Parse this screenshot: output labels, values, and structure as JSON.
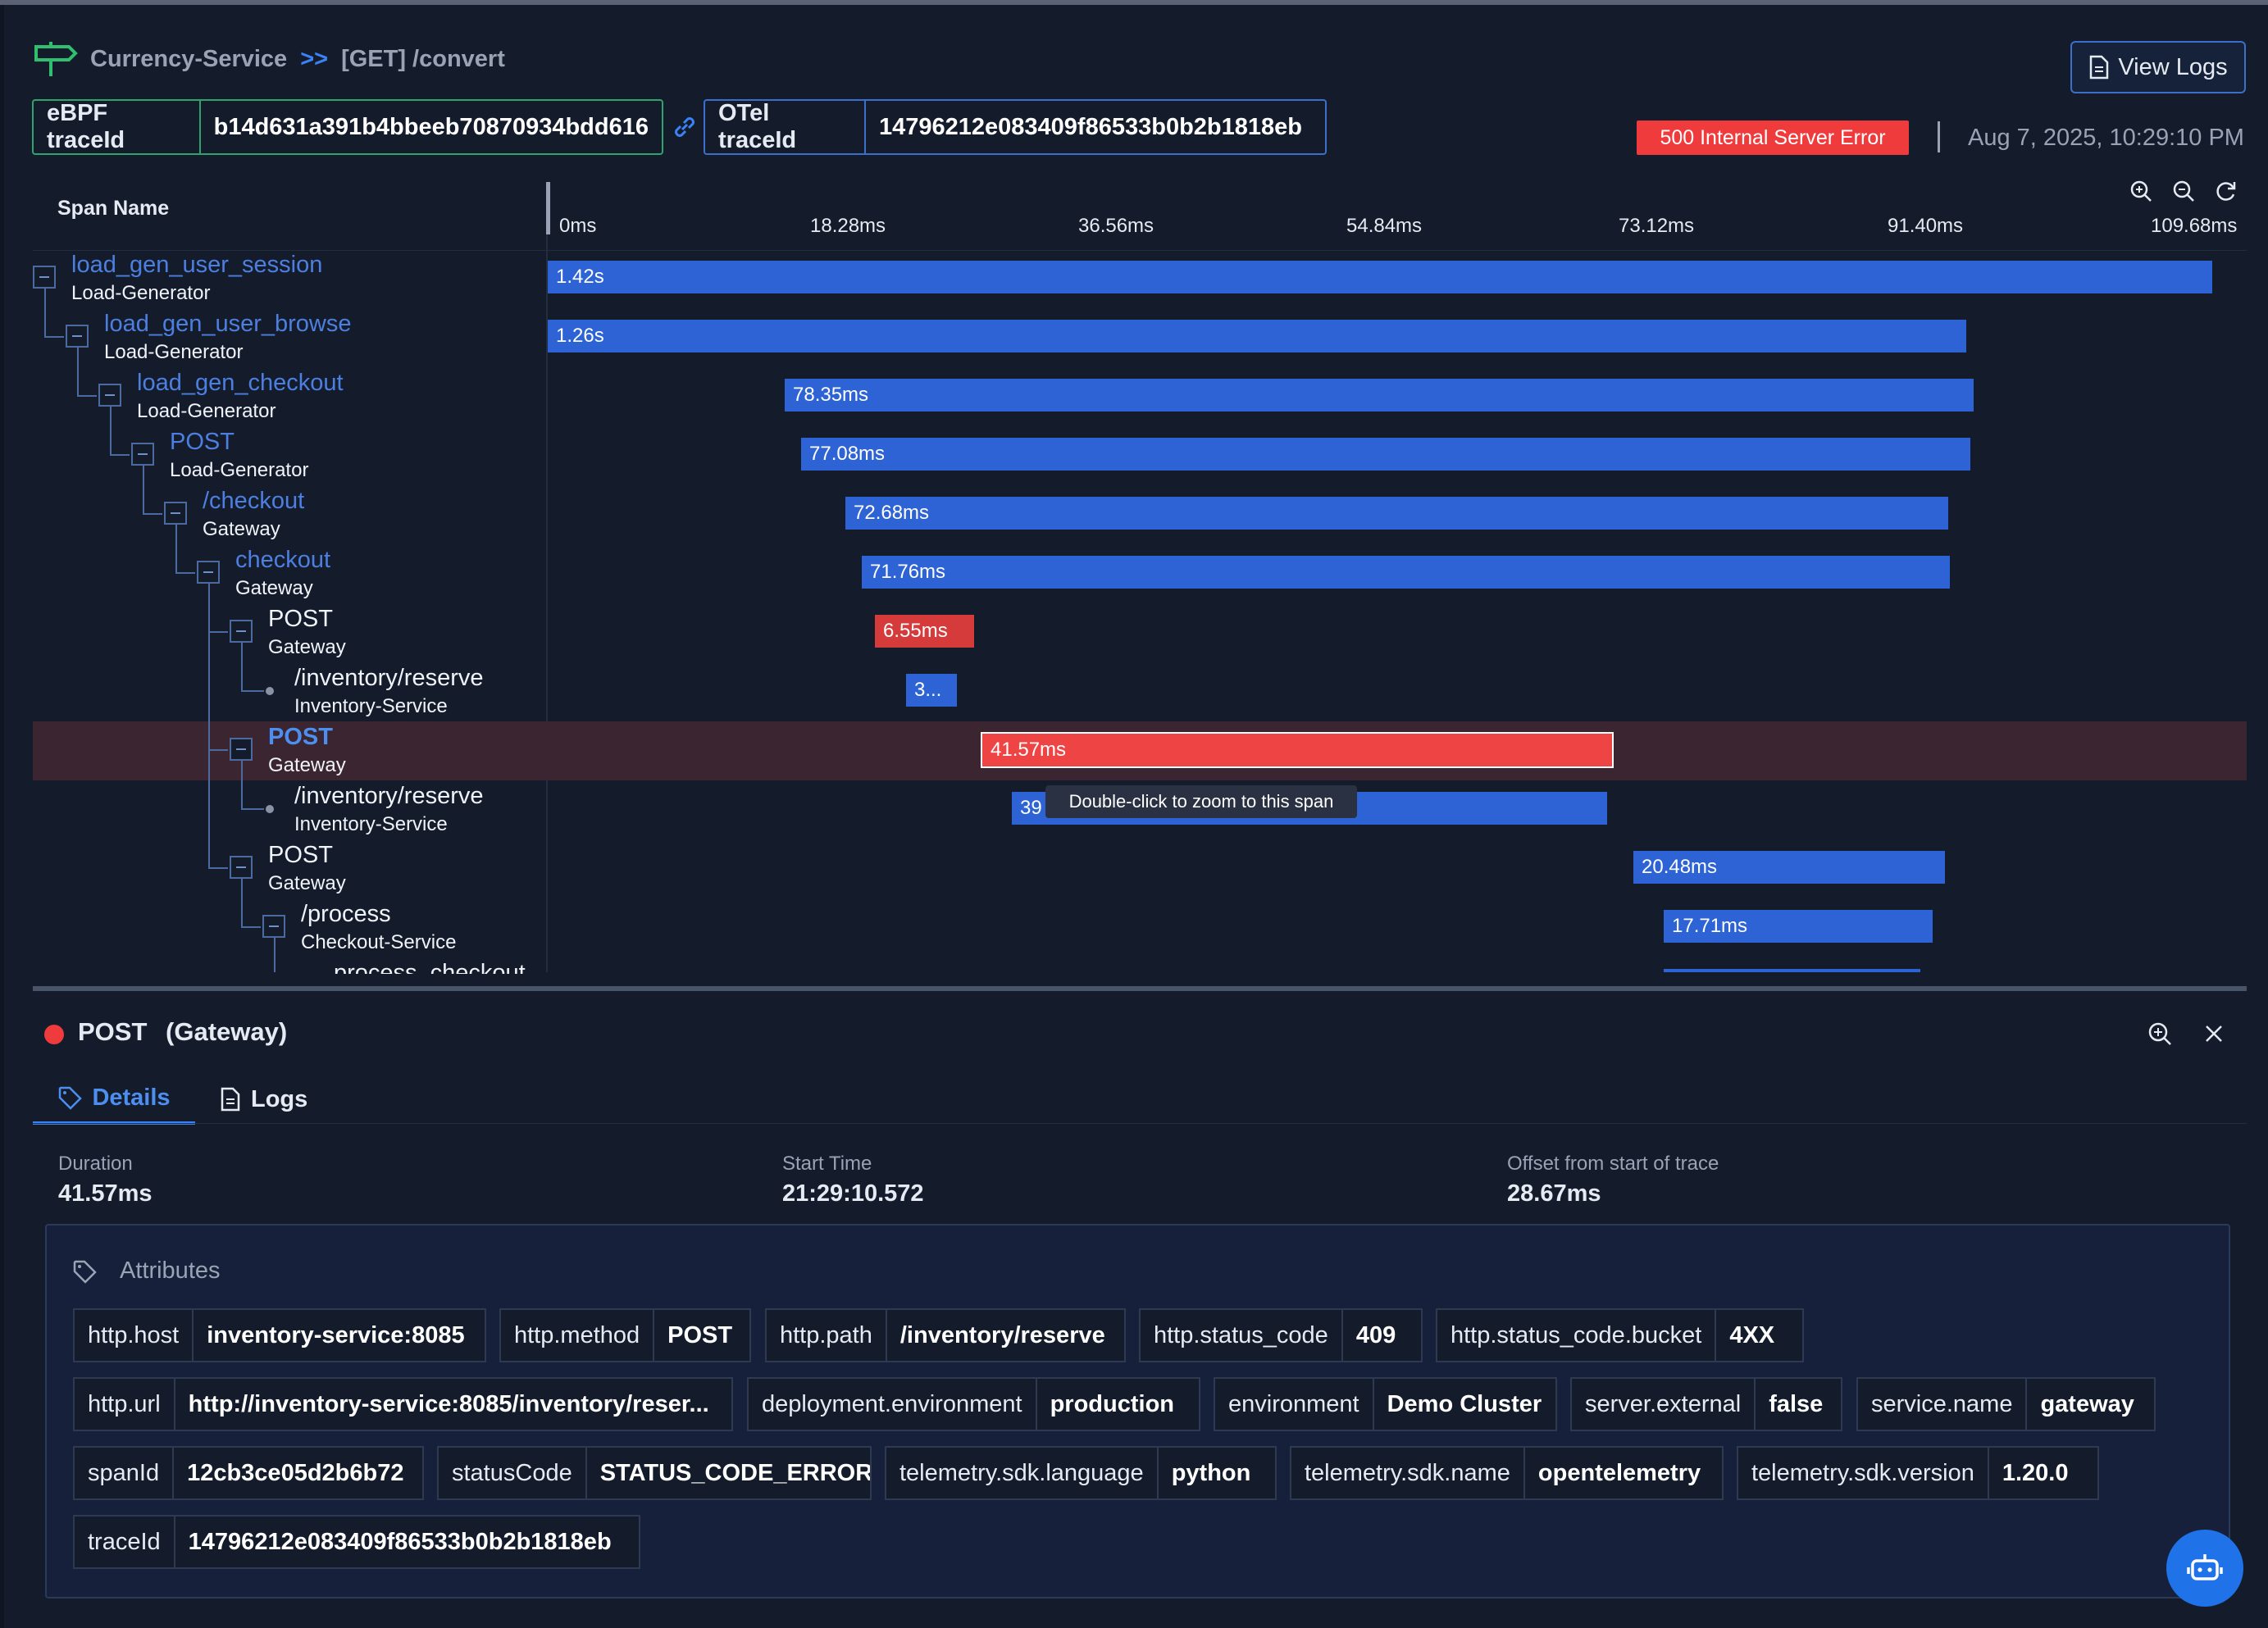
{
  "header": {
    "service": "Currency-Service",
    "separator": ">>",
    "endpoint": "[GET] /convert",
    "view_logs_label": "View Logs",
    "ebpf_trace_label": "eBPF traceId",
    "ebpf_trace_value": "b14d631a391b4bbeeb70870934bdd616",
    "otel_trace_label": "OTel traceId",
    "otel_trace_value": "14796212e083409f86533b0b2b1818eb",
    "status": "500 Internal Server Error",
    "timestamp": "Aug 7, 2025, 10:29:10 PM"
  },
  "trace": {
    "span_name_header": "Span Name",
    "ticks": [
      "0ms",
      "18.28ms",
      "36.56ms",
      "54.84ms",
      "73.12ms",
      "91.40ms",
      "109.68ms"
    ],
    "spans": [
      {
        "name": "load_gen_user_session",
        "service": "Load-Generator",
        "duration": "1.42s"
      },
      {
        "name": "load_gen_user_browse",
        "service": "Load-Generator",
        "duration": "1.26s"
      },
      {
        "name": "load_gen_checkout",
        "service": "Load-Generator",
        "duration": "78.35ms"
      },
      {
        "name": "POST",
        "service": "Load-Generator",
        "duration": "77.08ms"
      },
      {
        "name": "/checkout",
        "service": "Gateway",
        "duration": "72.68ms"
      },
      {
        "name": "checkout",
        "service": "Gateway",
        "duration": "71.76ms"
      },
      {
        "name": "POST",
        "service": "Gateway",
        "duration": "6.55ms"
      },
      {
        "name": "/inventory/reserve",
        "service": "Inventory-Service",
        "duration": "3..."
      },
      {
        "name": "POST",
        "service": "Gateway",
        "duration": "41.57ms"
      },
      {
        "name": "/inventory/reserve",
        "service": "Inventory-Service",
        "duration": "39"
      },
      {
        "name": "POST",
        "service": "Gateway",
        "duration": "20.48ms"
      },
      {
        "name": "/process",
        "service": "Checkout-Service",
        "duration": "17.71ms"
      },
      {
        "name": "process_checkout",
        "service": "",
        "duration": ""
      }
    ],
    "tooltip": "Double-click to zoom to this span"
  },
  "detail": {
    "title": "POST",
    "service": "(Gateway)",
    "tab_details": "Details",
    "tab_logs": "Logs",
    "duration_label": "Duration",
    "duration_value": "41.57ms",
    "start_label": "Start Time",
    "start_value": "21:29:10.572",
    "offset_label": "Offset from start of trace",
    "offset_value": "28.67ms",
    "attributes_label": "Attributes",
    "attributes": [
      {
        "k": "http.host",
        "v": "inventory-service:8085"
      },
      {
        "k": "http.method",
        "v": "POST"
      },
      {
        "k": "http.path",
        "v": "/inventory/reserve"
      },
      {
        "k": "http.status_code",
        "v": "409"
      },
      {
        "k": "http.status_code.bucket",
        "v": "4XX"
      },
      {
        "k": "http.url",
        "v": "http://inventory-service:8085/inventory/reser..."
      },
      {
        "k": "deployment.environment",
        "v": "production"
      },
      {
        "k": "environment",
        "v": "Demo Cluster"
      },
      {
        "k": "server.external",
        "v": "false"
      },
      {
        "k": "service.name",
        "v": "gateway"
      },
      {
        "k": "spanId",
        "v": "12cb3ce05d2b6b72"
      },
      {
        "k": "statusCode",
        "v": "STATUS_CODE_ERROR"
      },
      {
        "k": "telemetry.sdk.language",
        "v": "python"
      },
      {
        "k": "telemetry.sdk.name",
        "v": "opentelemetry"
      },
      {
        "k": "telemetry.sdk.version",
        "v": "1.20.0"
      },
      {
        "k": "traceId",
        "v": "14796212e083409f86533b0b2b1818eb"
      }
    ]
  },
  "colors": {
    "accent": "#3b82f6",
    "error": "#ef3b3b",
    "bar": "#2d63d4",
    "ebpf_border": "#2fa36b"
  },
  "icons": [
    "signpost-icon",
    "document-icon",
    "link-icon",
    "zoom-in-icon",
    "zoom-out-icon",
    "refresh-icon",
    "tag-icon",
    "close-icon",
    "robot-icon"
  ]
}
